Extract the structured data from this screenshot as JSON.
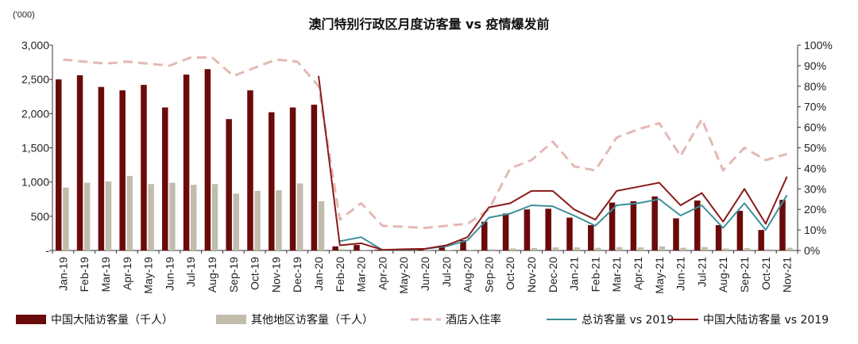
{
  "chart_data": {
    "type": "bar",
    "title": "澳门特别行政区月度访客量 vs 疫情爆发前",
    "y_unit_label": "('000)",
    "categories": [
      "Jan-19",
      "Feb-19",
      "Mar-19",
      "Apr-19",
      "May-19",
      "Jun-19",
      "Jul-19",
      "Aug-19",
      "Sep-19",
      "Oct-19",
      "Nov-19",
      "Dec-19",
      "Jan-20",
      "Feb-20",
      "Mar-20",
      "Apr-20",
      "May-20",
      "Jun-20",
      "Jul-20",
      "Aug-20",
      "Sep-20",
      "Oct-20",
      "Nov-20",
      "Dec-20",
      "Jan-21",
      "Feb-21",
      "Mar-21",
      "Apr-21",
      "May-21",
      "Jun-21",
      "Jul-21",
      "Aug-21",
      "Sep-21",
      "Oct-21",
      "Nov-21"
    ],
    "y_left": {
      "min": 0,
      "max": 3000,
      "ticks": [
        0,
        500,
        1000,
        1500,
        2000,
        2500,
        3000
      ],
      "tick_labels": [
        "-",
        "500",
        "1,000",
        "1,500",
        "2,000",
        "2,500",
        "3,000"
      ]
    },
    "y_right": {
      "min": 0,
      "max": 1,
      "ticks": [
        0,
        0.1,
        0.2,
        0.3,
        0.4,
        0.5,
        0.6,
        0.7,
        0.8,
        0.9,
        1.0
      ],
      "tick_labels": [
        "0%",
        "10%",
        "20%",
        "30%",
        "40%",
        "50%",
        "60%",
        "70%",
        "80%",
        "90%",
        "100%"
      ]
    },
    "grid": false,
    "legend_position": "bottom",
    "series": [
      {
        "name": "中国大陆访客量（千人）",
        "type": "bar",
        "axis": "left",
        "color": "#6b0a0a",
        "values": [
          2500,
          2560,
          2390,
          2340,
          2420,
          2090,
          2570,
          2650,
          1920,
          2340,
          2020,
          2090,
          2130,
          60,
          80,
          10,
          15,
          20,
          50,
          150,
          420,
          540,
          600,
          610,
          480,
          370,
          700,
          720,
          790,
          470,
          730,
          370,
          580,
          300,
          740
        ]
      },
      {
        "name": "其他地区访客量（千人）",
        "type": "bar",
        "axis": "left",
        "color": "#c2bcad",
        "values": [
          920,
          990,
          1010,
          1090,
          970,
          990,
          960,
          970,
          830,
          870,
          880,
          980,
          720,
          20,
          10,
          2,
          2,
          3,
          5,
          10,
          20,
          30,
          35,
          45,
          45,
          40,
          50,
          45,
          60,
          40,
          50,
          30,
          35,
          20,
          40
        ]
      },
      {
        "name": "酒店入住率",
        "type": "line",
        "axis": "right",
        "color": "#e3b9b4",
        "dash": "dashed",
        "values": [
          0.93,
          0.92,
          0.91,
          0.92,
          0.91,
          0.9,
          0.94,
          0.94,
          0.85,
          0.89,
          0.93,
          0.92,
          0.8,
          0.15,
          0.23,
          0.12,
          0.115,
          0.11,
          0.12,
          0.13,
          0.2,
          0.4,
          0.44,
          0.53,
          0.41,
          0.39,
          0.55,
          0.59,
          0.62,
          0.46,
          0.64,
          0.39,
          0.5,
          0.44,
          0.47
        ]
      },
      {
        "name": "总访客量 vs 2019",
        "type": "line",
        "axis": "right",
        "color": "#3d8f99",
        "values": [
          null,
          null,
          null,
          null,
          null,
          null,
          null,
          null,
          null,
          null,
          null,
          null,
          null,
          0.045,
          0.065,
          0.002,
          0.005,
          0.008,
          0.02,
          0.05,
          0.16,
          0.18,
          0.22,
          0.215,
          0.17,
          0.12,
          0.22,
          0.23,
          0.25,
          0.17,
          0.22,
          0.11,
          0.23,
          0.1,
          0.27
        ]
      },
      {
        "name": "中国大陆访客量 vs 2019",
        "type": "line",
        "axis": "right",
        "color": "#8a1a1a",
        "values": [
          null,
          null,
          null,
          null,
          null,
          null,
          null,
          null,
          null,
          null,
          null,
          null,
          0.85,
          0.025,
          0.035,
          0.003,
          0.006,
          0.008,
          0.025,
          0.065,
          0.21,
          0.23,
          0.29,
          0.29,
          0.2,
          0.15,
          0.29,
          0.31,
          0.33,
          0.22,
          0.28,
          0.14,
          0.3,
          0.13,
          0.36
        ]
      }
    ]
  }
}
